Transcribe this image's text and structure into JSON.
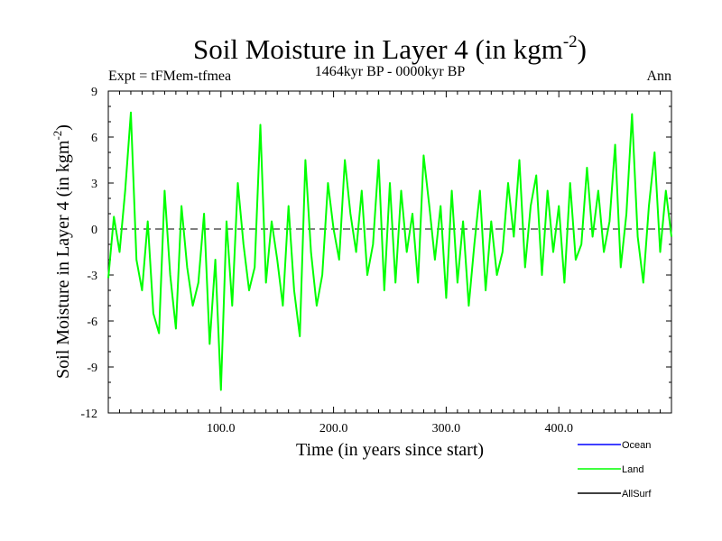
{
  "chart_data": {
    "type": "line",
    "title": "Soil Moisture in Layer 4 (in kgm",
    "title_sup": "-2",
    "title_close": ")",
    "subtitle": "1464kyr BP - 0000kyr BP",
    "expt_label": "Expt = tFMem-tfmea",
    "season_label": "Ann",
    "xlabel": "Time (in years since start)",
    "ylabel": "Soil Moisture in Layer 4 (in kgm",
    "ylabel_sup": "-2",
    "ylabel_close": ")",
    "xlim": [
      0,
      500
    ],
    "ylim": [
      -12,
      9
    ],
    "x_ticks": [
      100,
      200,
      300,
      400
    ],
    "x_tick_labels": [
      "100.0",
      "200.0",
      "300.0",
      "400.0"
    ],
    "y_ticks": [
      9,
      6,
      3,
      0,
      -3,
      -6,
      -9,
      -12
    ],
    "y_tick_labels": [
      "9",
      "6",
      "3",
      "0",
      "-3",
      "-6",
      "-9",
      "-12"
    ],
    "zero_line": 0,
    "colors": {
      "Ocean": "#0000ff",
      "Land": "#00ff00",
      "AllSurf": "#000000",
      "zero_line": "#000000"
    },
    "legend_placement": "bottom-right",
    "legend": [
      "Ocean",
      "Land",
      "AllSurf"
    ],
    "series": [
      {
        "name": "Land",
        "x": [
          0,
          5,
          10,
          15,
          20,
          25,
          30,
          35,
          40,
          45,
          50,
          55,
          60,
          65,
          70,
          75,
          80,
          85,
          90,
          95,
          100,
          105,
          110,
          115,
          120,
          125,
          130,
          135,
          140,
          145,
          150,
          155,
          160,
          165,
          170,
          175,
          180,
          185,
          190,
          195,
          200,
          205,
          210,
          215,
          220,
          225,
          230,
          235,
          240,
          245,
          250,
          255,
          260,
          265,
          270,
          275,
          280,
          285,
          290,
          295,
          300,
          305,
          310,
          315,
          320,
          325,
          330,
          335,
          340,
          345,
          350,
          355,
          360,
          365,
          370,
          375,
          380,
          385,
          390,
          395,
          400,
          405,
          410,
          415,
          420,
          425,
          430,
          435,
          440,
          445,
          450,
          455,
          460,
          465,
          470,
          475,
          480,
          485,
          490,
          495,
          500
        ],
        "values": [
          -3.2,
          0.8,
          -1.5,
          2.5,
          7.6,
          -2.0,
          -4.0,
          0.5,
          -5.5,
          -6.8,
          2.5,
          -3.0,
          -6.5,
          1.5,
          -2.5,
          -5.0,
          -3.5,
          1.0,
          -7.5,
          -2.0,
          -10.5,
          0.5,
          -5.0,
          3.0,
          -1.0,
          -4.0,
          -2.5,
          6.8,
          -3.5,
          0.5,
          -2.0,
          -5.0,
          1.5,
          -4.0,
          -7.0,
          4.5,
          -1.5,
          -5.0,
          -3.0,
          3.0,
          0.0,
          -2.0,
          4.5,
          1.0,
          -1.5,
          2.5,
          -3.0,
          -1.0,
          4.5,
          -4.0,
          3.0,
          -3.5,
          2.5,
          -1.5,
          1.0,
          -3.5,
          4.8,
          1.5,
          -2.0,
          1.5,
          -4.5,
          2.5,
          -3.5,
          0.5,
          -5.0,
          -1.0,
          2.5,
          -4.0,
          0.5,
          -3.0,
          -1.5,
          3.0,
          -0.5,
          4.5,
          -2.5,
          1.5,
          3.5,
          -3.0,
          2.5,
          -1.5,
          1.5,
          -3.5,
          3.0,
          -2.0,
          -1.0,
          4.0,
          -0.5,
          2.5,
          -1.5,
          0.5,
          5.5,
          -2.5,
          1.0,
          7.5,
          -0.5,
          -3.5,
          1.5,
          5.0,
          -1.5,
          2.5,
          -0.5
        ]
      }
    ]
  }
}
